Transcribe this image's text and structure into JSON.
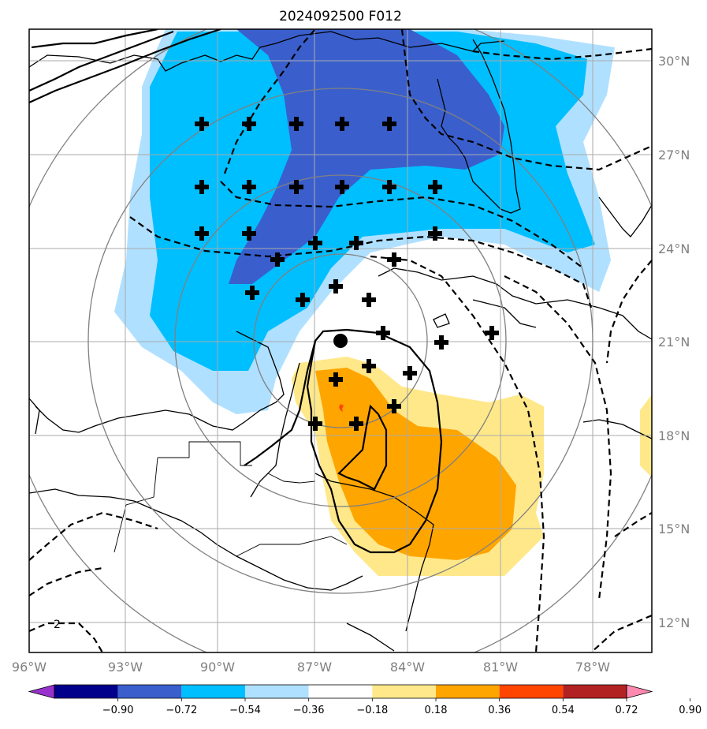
{
  "title": "2024092500 F012",
  "map": {
    "lon_labels": [
      "96°W",
      "93°W",
      "90°W",
      "87°W",
      "84°W",
      "81°W",
      "78°W"
    ],
    "lat_labels": [
      "30°N",
      "27°N",
      "24°N",
      "21°N",
      "18°N",
      "15°N",
      "12°N"
    ],
    "contour_label": "2"
  },
  "colorbar": {
    "levels": [
      "−0.90",
      "−0.72",
      "−0.54",
      "−0.36",
      "−0.18",
      "0.18",
      "0.36",
      "0.54",
      "0.72",
      "0.90"
    ],
    "colors": [
      "#9932cc",
      "#00008b",
      "#3a5fcd",
      "#00bfff",
      "#b0e0ff",
      "#ffffff",
      "#ffe88a",
      "#ffa500",
      "#ff4500",
      "#b22222",
      "#ff88b0"
    ]
  },
  "colors": {
    "neg_strong": "#3a5fcd",
    "neg_mid": "#00bfff",
    "neg_weak": "#b0e0ff",
    "pos_weak": "#ffe88a",
    "pos_mid": "#ffa500"
  }
}
